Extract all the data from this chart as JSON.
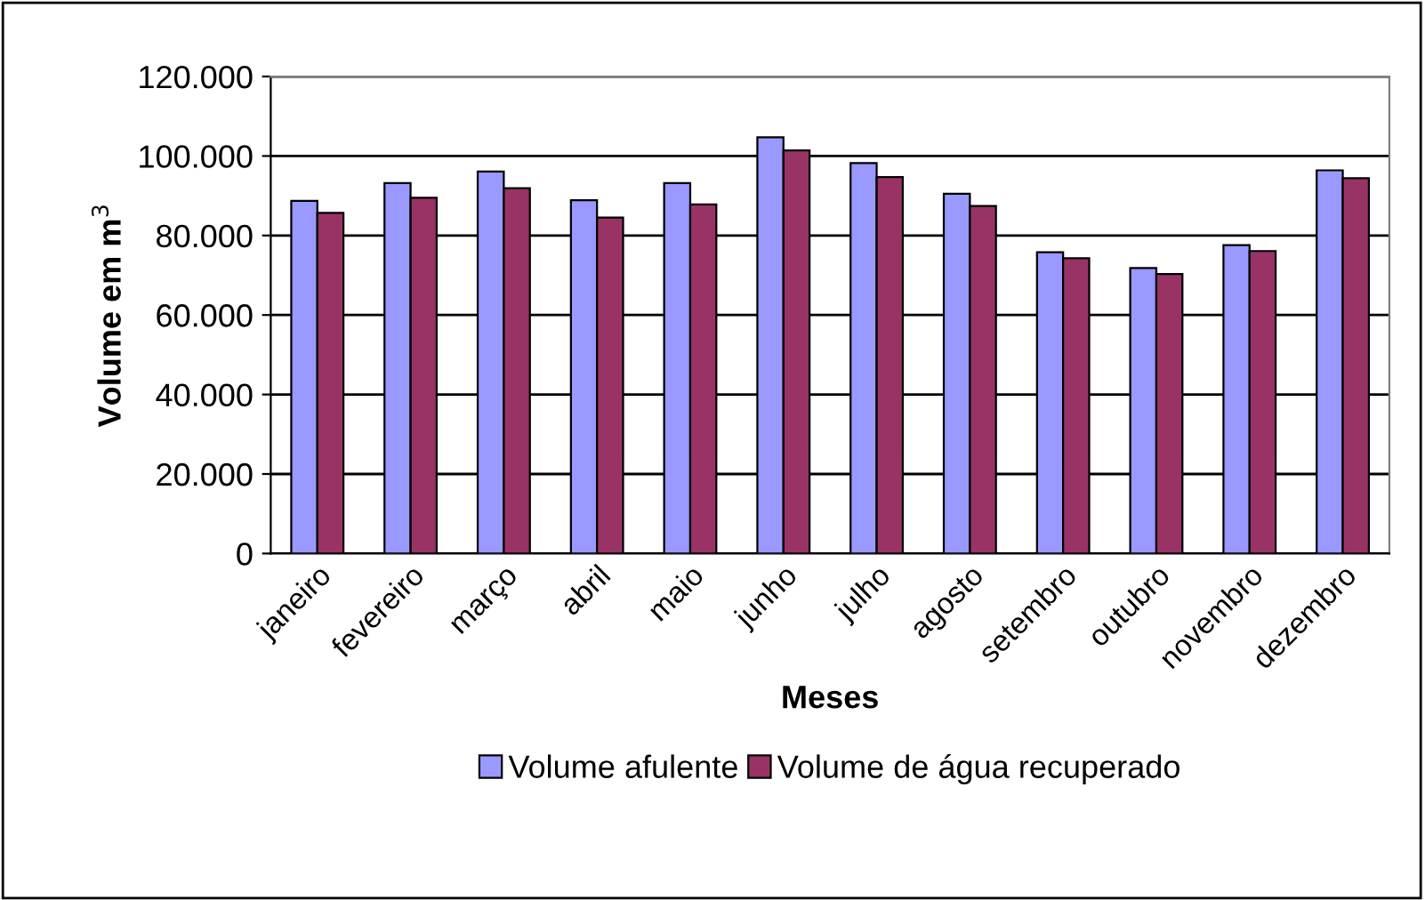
{
  "chart_data": {
    "type": "bar",
    "xlabel": "Meses",
    "ylabel": "Volume em m$^{3}$",
    "categories": [
      "janeiro",
      "fevereiro",
      "março",
      "abril",
      "maio",
      "junho",
      "julho",
      "agosto",
      "setembro",
      "outubro",
      "novembro",
      "dezembro"
    ],
    "series": [
      {
        "name": "Volume afulente",
        "color": "#9999ff",
        "values": [
          88700,
          93200,
          96100,
          88900,
          93200,
          104700,
          98200,
          90500,
          75800,
          71800,
          77600,
          96400
        ]
      },
      {
        "name": "Volume de água recuperado",
        "color": "#993366",
        "values": [
          85700,
          89500,
          91900,
          84500,
          87800,
          101400,
          94700,
          87400,
          74300,
          70300,
          76100,
          94400
        ]
      }
    ],
    "ylim": [
      0,
      120000
    ],
    "yticks": [
      {
        "value": 0,
        "label": "0"
      },
      {
        "value": 20000,
        "label": "20.000"
      },
      {
        "value": 40000,
        "label": "40.000"
      },
      {
        "value": 60000,
        "label": "60.000"
      },
      {
        "value": 80000,
        "label": "80.000"
      },
      {
        "value": 100000,
        "label": "100.000"
      },
      {
        "value": 120000,
        "label": "120.000"
      }
    ],
    "grid": "y",
    "legend": "bottom"
  }
}
